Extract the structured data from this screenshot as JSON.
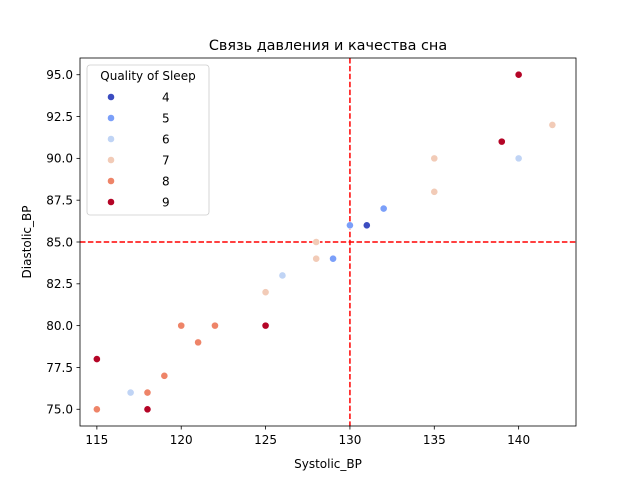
{
  "chart_data": {
    "type": "scatter",
    "title": "Связь давления и качества сна",
    "xlabel": "Systolic_BP",
    "ylabel": "Diastolic_BP",
    "xlim": [
      114,
      143.4
    ],
    "ylim": [
      74,
      96
    ],
    "xticks": [
      "115",
      "120",
      "125",
      "130",
      "135",
      "140"
    ],
    "yticks": [
      "75.0",
      "77.5",
      "80.0",
      "82.5",
      "85.0",
      "87.5",
      "90.0",
      "92.5",
      "95.0"
    ],
    "grid": false,
    "legend": {
      "title": "Quality of Sleep",
      "placement": "upper-left",
      "entries": [
        {
          "label": "4",
          "color": "#3b4cc0"
        },
        {
          "label": "5",
          "color": "#7b9ff9"
        },
        {
          "label": "6",
          "color": "#c0d4f5"
        },
        {
          "label": "7",
          "color": "#f2cbb7"
        },
        {
          "label": "8",
          "color": "#ee8468"
        },
        {
          "label": "9",
          "color": "#b40426"
        }
      ]
    },
    "reference_lines": [
      {
        "orientation": "vertical",
        "value": 130,
        "color": "#ff0000",
        "style": "dashed"
      },
      {
        "orientation": "horizontal",
        "value": 85,
        "color": "#ff0000",
        "style": "dashed"
      }
    ],
    "points": [
      {
        "x": 115,
        "y": 75,
        "quality": "8"
      },
      {
        "x": 115,
        "y": 78,
        "quality": "9"
      },
      {
        "x": 117,
        "y": 76,
        "quality": "6"
      },
      {
        "x": 118,
        "y": 75,
        "quality": "9"
      },
      {
        "x": 118,
        "y": 76,
        "quality": "8"
      },
      {
        "x": 119,
        "y": 77,
        "quality": "8"
      },
      {
        "x": 120,
        "y": 80,
        "quality": "8"
      },
      {
        "x": 121,
        "y": 79,
        "quality": "8"
      },
      {
        "x": 122,
        "y": 80,
        "quality": "8"
      },
      {
        "x": 125,
        "y": 80,
        "quality": "9"
      },
      {
        "x": 125,
        "y": 82,
        "quality": "7"
      },
      {
        "x": 126,
        "y": 83,
        "quality": "6"
      },
      {
        "x": 128,
        "y": 84,
        "quality": "7"
      },
      {
        "x": 128,
        "y": 85,
        "quality": "7"
      },
      {
        "x": 129,
        "y": 84,
        "quality": "5"
      },
      {
        "x": 130,
        "y": 86,
        "quality": "5"
      },
      {
        "x": 131,
        "y": 86,
        "quality": "4"
      },
      {
        "x": 132,
        "y": 87,
        "quality": "5"
      },
      {
        "x": 135,
        "y": 88,
        "quality": "7"
      },
      {
        "x": 135,
        "y": 90,
        "quality": "7"
      },
      {
        "x": 139,
        "y": 91,
        "quality": "9"
      },
      {
        "x": 140,
        "y": 90,
        "quality": "6"
      },
      {
        "x": 140,
        "y": 95,
        "quality": "9"
      },
      {
        "x": 142,
        "y": 92,
        "quality": "7"
      }
    ]
  }
}
